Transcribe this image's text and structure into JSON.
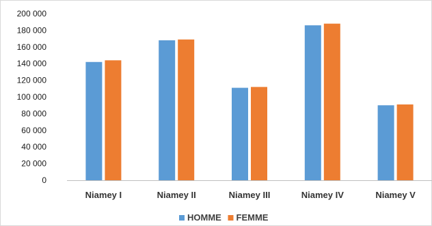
{
  "chart_data": {
    "type": "bar",
    "categories": [
      "Niamey I",
      "Niamey II",
      "Niamey III",
      "Niamey IV",
      "Niamey V"
    ],
    "series": [
      {
        "name": "HOMME",
        "color": "#5b9bd5",
        "values": [
          142000,
          168000,
          111000,
          186000,
          90000
        ]
      },
      {
        "name": "FEMME",
        "color": "#ed7d31",
        "values": [
          144000,
          169000,
          112000,
          188000,
          91000
        ]
      }
    ],
    "y_ticks": [
      "0",
      "20 000",
      "40 000",
      "60 000",
      "80 000",
      "100 000",
      "120 000",
      "140 000",
      "160 000",
      "180 000",
      "200 000"
    ],
    "ylim": [
      0,
      200000
    ],
    "grid": false,
    "legend_position": "bottom"
  }
}
